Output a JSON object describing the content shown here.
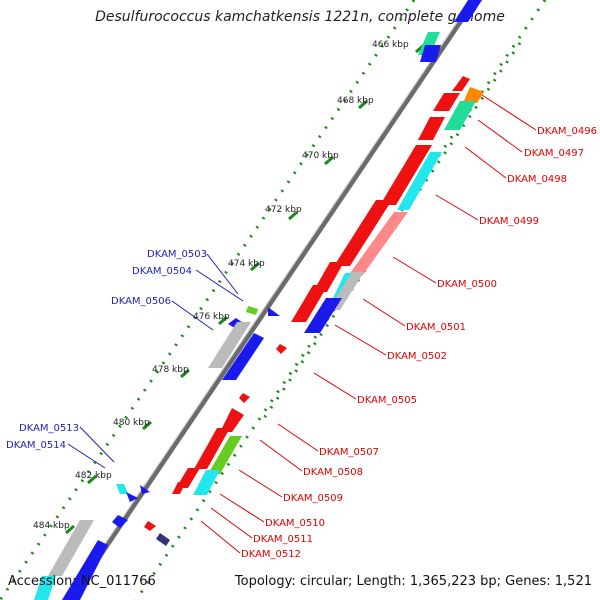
{
  "title": "Desulfurococcus kamchatkensis 1221n, complete genome",
  "footer": {
    "accession": "Accession: NC_011766",
    "topology": "Topology: circular; Length: 1,365,223 bp; Genes: 1,521"
  },
  "kbp_labels": [
    "466 kbp",
    "468 kbp",
    "470 kbp",
    "472 kbp",
    "474 kbp",
    "476 kbp",
    "478 kbp",
    "480 kbp",
    "482 kbp",
    "484 kbp"
  ],
  "genes_right": [
    "DKAM_0496",
    "DKAM_0497",
    "DKAM_0498",
    "DKAM_0499",
    "DKAM_0500",
    "DKAM_0501",
    "DKAM_0502",
    "DKAM_0505",
    "DKAM_0507",
    "DKAM_0508",
    "DKAM_0509",
    "DKAM_0510",
    "DKAM_0511",
    "DKAM_0512"
  ],
  "genes_left": [
    "DKAM_0503",
    "DKAM_0504",
    "DKAM_0506",
    "DKAM_0513",
    "DKAM_0514"
  ],
  "colors": {
    "red": "#ee1111",
    "blue": "#1a1aee",
    "cyan": "#22e8ee",
    "teal": "#22dd99",
    "orange": "#ff8800",
    "salmon": "#ff8888",
    "green": "#66cc22",
    "grey": "#bbbbbb",
    "navy": "#333377"
  }
}
